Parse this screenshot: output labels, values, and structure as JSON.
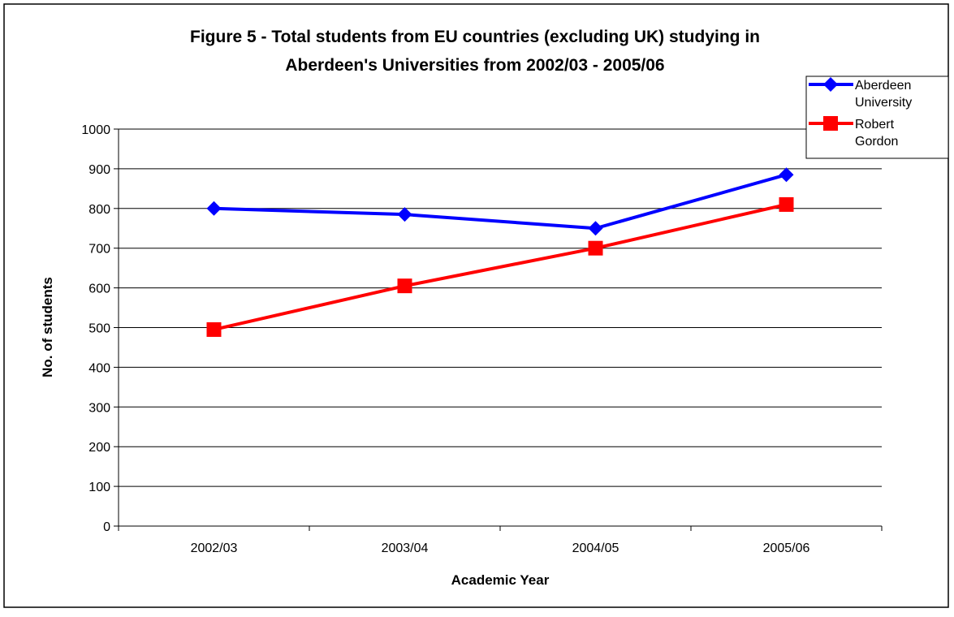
{
  "chart_data": {
    "type": "line",
    "title_lines": [
      "Figure 5 - Total students from EU countries (excluding UK) studying in",
      "Aberdeen's Universities from 2002/03 - 2005/06"
    ],
    "xlabel": "Academic Year",
    "ylabel": "No. of students",
    "categories": [
      "2002/03",
      "2003/04",
      "2004/05",
      "2005/06"
    ],
    "ylim": [
      0,
      1000
    ],
    "yticks": [
      0,
      100,
      200,
      300,
      400,
      500,
      600,
      700,
      800,
      900,
      1000
    ],
    "grid": true,
    "legend_position": "top-right",
    "series": [
      {
        "name_lines": [
          "Aberdeen",
          "University"
        ],
        "values": [
          800,
          785,
          750,
          885
        ],
        "color": "#0000ff",
        "marker": "diamond"
      },
      {
        "name_lines": [
          "Robert",
          "Gordon"
        ],
        "values": [
          495,
          605,
          700,
          810
        ],
        "color": "#ff0000",
        "marker": "square"
      }
    ]
  }
}
